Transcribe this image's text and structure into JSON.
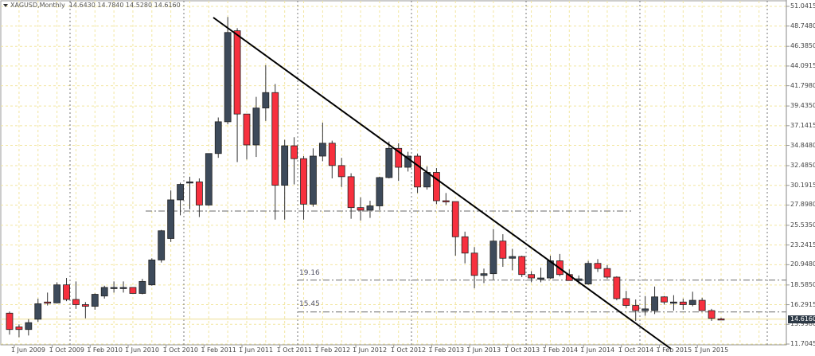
{
  "header": {
    "symbol": "XAGUSD,Monthly",
    "ohlc": "14.6430 14.7840 14.5280 14.6160"
  },
  "colors": {
    "bull": "#3d4a5a",
    "bear": "#f7303e",
    "grid": "#f2e6a0",
    "trendline": "#000000",
    "level": "#888888",
    "period_sep": "#777777",
    "current_price_bg": "#2e3a47"
  },
  "levels": [
    {
      "label": "19.16",
      "value": 19.16
    },
    {
      "label": "15.45",
      "value": 15.45
    },
    {
      "label": "",
      "value": 27.1
    }
  ],
  "current_price": "14.6160",
  "chart_data": {
    "type": "candlestick",
    "title": "XAGUSD,Monthly",
    "xlabel": "",
    "ylabel": "",
    "ylim": [
      11.3,
      51.6
    ],
    "grid": true,
    "legend": "none",
    "y_ticks": [
      "51.0415",
      "48.7480",
      "46.3850",
      "44.0915",
      "41.7980",
      "39.4350",
      "37.1415",
      "34.8480",
      "32.4850",
      "30.1915",
      "27.8980",
      "25.5350",
      "23.2415",
      "20.9480",
      "18.5850",
      "16.2915",
      "13.9980",
      "11.7045"
    ],
    "x_ticks": [
      "1 Jun 2009",
      "1 Oct 2009",
      "1 Feb 2010",
      "1 Jun 2010",
      "1 Oct 2010",
      "1 Feb 2011",
      "1 Jun 2011",
      "1 Oct 2011",
      "1 Feb 2012",
      "1 Jun 2012",
      "1 Oct 2012",
      "1 Feb 2013",
      "1 Jun 2013",
      "1 Oct 2013",
      "1 Feb 2014",
      "1 Jun 2014",
      "1 Oct 2014",
      "1 Feb 2015",
      "1 Jun 2015"
    ],
    "annotations": [
      "19.16",
      "15.45",
      "trendline from Apr 2011 high (~49.8) descending to ~11.5 by Mar 2015"
    ],
    "candles": [
      {
        "x": "May 2009",
        "o": 15.3,
        "h": 15.5,
        "l": 12.8,
        "c": 13.4
      },
      {
        "x": "Jun 2009",
        "o": 13.7,
        "h": 14.0,
        "l": 12.5,
        "c": 13.4
      },
      {
        "x": "Jul 2009",
        "o": 13.4,
        "h": 14.6,
        "l": 12.7,
        "c": 14.2
      },
      {
        "x": "Aug 2009",
        "o": 14.6,
        "h": 17.0,
        "l": 14.3,
        "c": 16.4
      },
      {
        "x": "Sep 2009",
        "o": 16.6,
        "h": 17.7,
        "l": 16.2,
        "c": 16.5
      },
      {
        "x": "Oct 2009",
        "o": 16.5,
        "h": 18.9,
        "l": 16.5,
        "c": 18.6
      },
      {
        "x": "Nov 2009",
        "o": 18.6,
        "h": 19.4,
        "l": 16.7,
        "c": 16.9
      },
      {
        "x": "Dec 2009",
        "o": 16.9,
        "h": 19.0,
        "l": 15.8,
        "c": 16.3
      },
      {
        "x": "Jan 2010",
        "o": 16.3,
        "h": 16.6,
        "l": 14.7,
        "c": 16.1
      },
      {
        "x": "Feb 2010",
        "o": 16.1,
        "h": 17.6,
        "l": 15.7,
        "c": 17.5
      },
      {
        "x": "Mar 2010",
        "o": 17.3,
        "h": 18.5,
        "l": 17.0,
        "c": 18.3
      },
      {
        "x": "Apr 2010",
        "o": 18.3,
        "h": 19.0,
        "l": 17.7,
        "c": 18.3
      },
      {
        "x": "May 2010",
        "o": 18.3,
        "h": 19.0,
        "l": 17.7,
        "c": 18.3
      },
      {
        "x": "Jun 2010",
        "o": 18.3,
        "h": 18.1,
        "l": 17.8,
        "c": 17.6
      },
      {
        "x": "Jul 2010",
        "o": 17.6,
        "h": 19.3,
        "l": 17.5,
        "c": 19.0
      },
      {
        "x": "Aug 2010",
        "o": 18.6,
        "h": 21.7,
        "l": 18.5,
        "c": 21.5
      },
      {
        "x": "Sep 2010",
        "o": 21.5,
        "h": 25.0,
        "l": 21.2,
        "c": 24.9
      },
      {
        "x": "Oct 2010",
        "o": 24.0,
        "h": 29.6,
        "l": 23.6,
        "c": 28.5
      },
      {
        "x": "Nov 2010",
        "o": 28.5,
        "h": 30.5,
        "l": 26.7,
        "c": 30.3
      },
      {
        "x": "Dec 2010",
        "o": 30.5,
        "h": 31.2,
        "l": 27.4,
        "c": 30.6
      },
      {
        "x": "Jan 2011",
        "o": 30.6,
        "h": 31.0,
        "l": 26.5,
        "c": 27.9
      },
      {
        "x": "Feb 2011",
        "o": 27.9,
        "h": 33.9,
        "l": 27.8,
        "c": 33.9
      },
      {
        "x": "Mar 2011",
        "o": 33.9,
        "h": 38.1,
        "l": 33.4,
        "c": 37.6
      },
      {
        "x": "Apr 2011",
        "o": 37.6,
        "h": 49.8,
        "l": 37.3,
        "c": 48.0
      },
      {
        "x": "May 2011",
        "o": 48.2,
        "h": 48.5,
        "l": 32.9,
        "c": 38.5
      },
      {
        "x": "Jun 2011",
        "o": 38.5,
        "h": 38.0,
        "l": 33.2,
        "c": 34.9
      },
      {
        "x": "Jul 2011",
        "o": 34.9,
        "h": 40.5,
        "l": 33.5,
        "c": 39.2
      },
      {
        "x": "Aug 2011",
        "o": 39.2,
        "h": 44.2,
        "l": 37.7,
        "c": 41.0
      },
      {
        "x": "Sep 2011",
        "o": 41.0,
        "h": 42.0,
        "l": 26.2,
        "c": 30.2
      },
      {
        "x": "Oct 2011",
        "o": 30.2,
        "h": 35.5,
        "l": 26.2,
        "c": 34.8
      },
      {
        "x": "Nov 2011",
        "o": 34.8,
        "h": 35.8,
        "l": 30.3,
        "c": 33.3
      },
      {
        "x": "Dec 2011",
        "o": 33.3,
        "h": 33.6,
        "l": 26.2,
        "c": 28.0
      },
      {
        "x": "Jan 2012",
        "o": 28.0,
        "h": 34.5,
        "l": 27.7,
        "c": 33.6
      },
      {
        "x": "Feb 2012",
        "o": 33.6,
        "h": 37.5,
        "l": 33.0,
        "c": 35.1
      },
      {
        "x": "Mar 2012",
        "o": 35.1,
        "h": 35.4,
        "l": 31.0,
        "c": 32.5
      },
      {
        "x": "Apr 2012",
        "o": 32.5,
        "h": 33.4,
        "l": 30.0,
        "c": 31.2
      },
      {
        "x": "May 2012",
        "o": 31.2,
        "h": 31.6,
        "l": 26.3,
        "c": 27.6
      },
      {
        "x": "Jun 2012",
        "o": 27.6,
        "h": 28.8,
        "l": 26.1,
        "c": 27.3
      },
      {
        "x": "Jul 2012",
        "o": 27.3,
        "h": 28.4,
        "l": 26.4,
        "c": 27.8
      },
      {
        "x": "Aug 2012",
        "o": 27.8,
        "h": 31.2,
        "l": 27.3,
        "c": 31.1
      },
      {
        "x": "Sep 2012",
        "o": 31.1,
        "h": 35.3,
        "l": 31.0,
        "c": 34.5
      },
      {
        "x": "Oct 2012",
        "o": 34.5,
        "h": 35.1,
        "l": 30.7,
        "c": 32.3
      },
      {
        "x": "Nov 2012",
        "o": 32.3,
        "h": 34.1,
        "l": 31.8,
        "c": 33.6
      },
      {
        "x": "Dec 2012",
        "o": 33.6,
        "h": 33.9,
        "l": 29.3,
        "c": 30.0
      },
      {
        "x": "Jan 2013",
        "o": 30.0,
        "h": 32.4,
        "l": 29.7,
        "c": 31.7
      },
      {
        "x": "Feb 2013",
        "o": 31.7,
        "h": 32.2,
        "l": 28.0,
        "c": 28.4
      },
      {
        "x": "Mar 2013",
        "o": 28.4,
        "h": 29.3,
        "l": 27.9,
        "c": 28.3
      },
      {
        "x": "Apr 2013",
        "o": 28.3,
        "h": 28.3,
        "l": 22.0,
        "c": 24.2
      },
      {
        "x": "May 2013",
        "o": 24.2,
        "h": 24.8,
        "l": 21.1,
        "c": 22.3
      },
      {
        "x": "Jun 2013",
        "o": 22.3,
        "h": 23.0,
        "l": 18.2,
        "c": 19.7
      },
      {
        "x": "Jul 2013",
        "o": 19.7,
        "h": 20.5,
        "l": 18.8,
        "c": 19.9
      },
      {
        "x": "Aug 2013",
        "o": 19.9,
        "h": 25.1,
        "l": 19.2,
        "c": 23.7
      },
      {
        "x": "Sep 2013",
        "o": 23.7,
        "h": 24.5,
        "l": 20.7,
        "c": 21.7
      },
      {
        "x": "Oct 2013",
        "o": 21.7,
        "h": 22.8,
        "l": 20.3,
        "c": 21.9
      },
      {
        "x": "Nov 2013",
        "o": 21.9,
        "h": 22.0,
        "l": 19.5,
        "c": 19.8
      },
      {
        "x": "Dec 2013",
        "o": 19.8,
        "h": 20.2,
        "l": 18.9,
        "c": 19.4
      },
      {
        "x": "Jan 2014",
        "o": 19.4,
        "h": 20.6,
        "l": 18.9,
        "c": 19.4
      },
      {
        "x": "Feb 2014",
        "o": 19.4,
        "h": 22.0,
        "l": 19.3,
        "c": 21.4
      },
      {
        "x": "Mar 2014",
        "o": 21.4,
        "h": 22.2,
        "l": 19.6,
        "c": 19.8
      },
      {
        "x": "Apr 2014",
        "o": 19.8,
        "h": 20.4,
        "l": 19.2,
        "c": 19.1
      },
      {
        "x": "May 2014",
        "o": 19.1,
        "h": 19.7,
        "l": 18.7,
        "c": 19.3
      },
      {
        "x": "Jun 2014",
        "o": 18.7,
        "h": 21.4,
        "l": 18.6,
        "c": 21.1
      },
      {
        "x": "Jul 2014",
        "o": 21.1,
        "h": 21.6,
        "l": 20.1,
        "c": 20.5
      },
      {
        "x": "Aug 2014",
        "o": 20.5,
        "h": 20.9,
        "l": 19.3,
        "c": 19.5
      },
      {
        "x": "Sep 2014",
        "o": 19.5,
        "h": 19.6,
        "l": 16.8,
        "c": 17.0
      },
      {
        "x": "Oct 2014",
        "o": 17.0,
        "h": 17.9,
        "l": 15.9,
        "c": 16.2
      },
      {
        "x": "Nov 2014",
        "o": 16.2,
        "h": 16.9,
        "l": 14.4,
        "c": 15.6
      },
      {
        "x": "Dec 2014",
        "o": 15.6,
        "h": 17.3,
        "l": 15.0,
        "c": 15.8
      },
      {
        "x": "Jan 2015",
        "o": 15.6,
        "h": 18.4,
        "l": 15.2,
        "c": 17.2
      },
      {
        "x": "Feb 2015",
        "o": 17.2,
        "h": 17.3,
        "l": 16.3,
        "c": 16.6
      },
      {
        "x": "Mar 2015",
        "o": 16.6,
        "h": 17.4,
        "l": 15.6,
        "c": 16.6
      },
      {
        "x": "Apr 2015",
        "o": 16.6,
        "h": 17.0,
        "l": 15.7,
        "c": 16.3
      },
      {
        "x": "May 2015",
        "o": 16.3,
        "h": 17.8,
        "l": 16.1,
        "c": 16.8
      },
      {
        "x": "Jun 2015",
        "o": 16.8,
        "h": 17.1,
        "l": 15.6,
        "c": 15.6
      },
      {
        "x": "Jul 2015",
        "o": 15.6,
        "h": 15.8,
        "l": 14.4,
        "c": 14.7
      },
      {
        "x": "Aug 2015",
        "o": 14.64,
        "h": 14.78,
        "l": 14.53,
        "c": 14.62
      }
    ]
  }
}
